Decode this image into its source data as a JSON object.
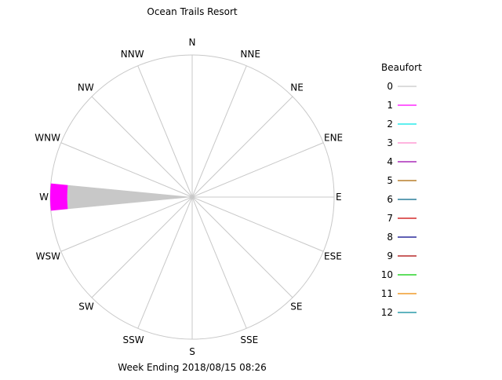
{
  "chart_data": {
    "type": "windrose",
    "title": "Ocean Trails Resort",
    "footer": "Week Ending 2018/08/15 08:26",
    "directions": [
      "N",
      "NNE",
      "NE",
      "ENE",
      "E",
      "ESE",
      "SE",
      "SSE",
      "S",
      "SSW",
      "SW",
      "WSW",
      "W",
      "WNW",
      "NW",
      "NNW"
    ],
    "rmax": 100,
    "grid": true,
    "legend": {
      "title": "Beaufort",
      "position": "right",
      "items": [
        {
          "label": "0",
          "color": "#c8c8c8"
        },
        {
          "label": "1",
          "color": "#ff00ff"
        },
        {
          "label": "2",
          "color": "#00e5e5"
        },
        {
          "label": "3",
          "color": "#ff88cc"
        },
        {
          "label": "4",
          "color": "#9900aa"
        },
        {
          "label": "5",
          "color": "#aa6600"
        },
        {
          "label": "6",
          "color": "#006688"
        },
        {
          "label": "7",
          "color": "#cc0000"
        },
        {
          "label": "8",
          "color": "#000088"
        },
        {
          "label": "9",
          "color": "#aa0000"
        },
        {
          "label": "10",
          "color": "#00cc00"
        },
        {
          "label": "11",
          "color": "#ee8800"
        },
        {
          "label": "12",
          "color": "#008899"
        }
      ]
    },
    "petals": [
      {
        "direction": "W",
        "segments": [
          {
            "beaufort": "0",
            "color": "#c8c8c8",
            "from": 0,
            "to": 88
          },
          {
            "beaufort": "1",
            "color": "#ff00ff",
            "from": 88,
            "to": 100
          }
        ]
      }
    ]
  }
}
